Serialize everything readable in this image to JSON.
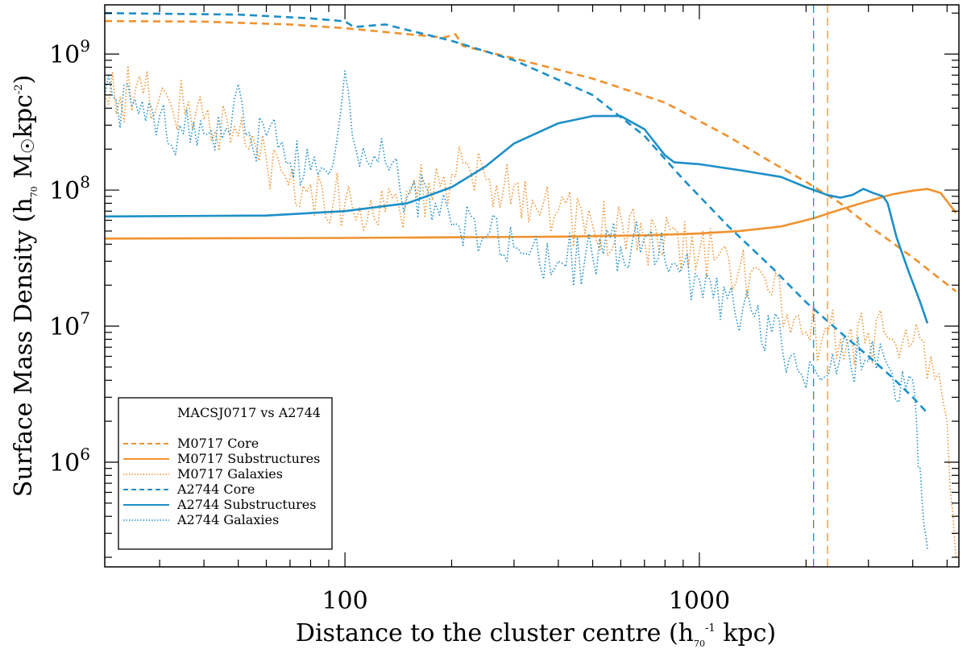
{
  "chart_data": {
    "type": "line",
    "x_scale": "log",
    "y_scale": "log",
    "xlim": [
      21,
      5400
    ],
    "ylim": [
      170000,
      2300000000
    ],
    "xlabel_parts": [
      "Distance to the cluster centre (h",
      "70",
      "-1",
      " kpc)"
    ],
    "ylabel_parts": [
      "Surface Mass Density (h",
      "70",
      " M",
      "☉",
      "kpc",
      "-2",
      ")"
    ],
    "x_ticks": [
      {
        "value": 100,
        "label": "100"
      },
      {
        "value": 1000,
        "label": "1000"
      }
    ],
    "y_ticks": [
      {
        "value": 1000000,
        "base": "10",
        "exp": "6"
      },
      {
        "value": 10000000,
        "base": "10",
        "exp": "7"
      },
      {
        "value": 100000000,
        "base": "10",
        "exp": "8"
      },
      {
        "value": 1000000000,
        "base": "10",
        "exp": "9"
      }
    ],
    "grid": false,
    "legend": {
      "position": "bottom-left",
      "title": "MACSJ0717 vs A2744"
    },
    "colors": {
      "orange": "#f0922e",
      "blue": "#1c8fc8"
    },
    "vlines": [
      {
        "x": 2100,
        "color": "#1c8fc8",
        "style": "dashed"
      },
      {
        "x": 2300,
        "color": "#f0922e",
        "style": "dashed"
      }
    ],
    "series": [
      {
        "name": "M0717 Core",
        "color": "#f0922e",
        "style": "dashed",
        "x": [
          21,
          40,
          70,
          100,
          150,
          190,
          205,
          215,
          300,
          500,
          800,
          1200,
          1600,
          2000,
          2500,
          3000,
          4000,
          5300
        ],
        "y": [
          1750000000,
          1730000000,
          1650000000,
          1550000000,
          1400000000,
          1320000000,
          1400000000,
          1150000000,
          930000000,
          660000000,
          440000000,
          250000000,
          160000000,
          115000000,
          80000000,
          55000000,
          32000000,
          18000000
        ]
      },
      {
        "name": "M0717 Substructures",
        "color": "#f0922e",
        "style": "solid",
        "x": [
          21,
          100,
          200,
          400,
          700,
          1000,
          1300,
          1700,
          2100,
          2500,
          3000,
          3500,
          4000,
          4400,
          4800,
          5300
        ],
        "y": [
          44000000,
          44500000,
          45000000,
          45500000,
          46500000,
          48000000,
          50000000,
          54000000,
          62000000,
          72000000,
          83000000,
          93000000,
          99000000,
          102000000,
          95000000,
          68000000
        ]
      },
      {
        "name": "M0717 Galaxies",
        "color": "#f0922e",
        "style": "dotted",
        "x": [
          21,
          27,
          32,
          40,
          50,
          60,
          80,
          100,
          130,
          160,
          200,
          250,
          300,
          400,
          500,
          700,
          1000,
          1300,
          1600,
          2000,
          2500,
          3000,
          3500,
          4000,
          4500,
          5000,
          5200,
          5300
        ],
        "y": [
          500000000,
          510000000,
          450000000,
          330000000,
          250000000,
          170000000,
          110000000,
          80000000,
          70000000,
          90000000,
          130000000,
          120000000,
          110000000,
          70000000,
          55000000,
          42000000,
          35000000,
          27000000,
          17000000,
          9000000,
          8000000,
          9000000,
          8000000,
          7500000,
          6000000,
          2000000,
          400000,
          200000
        ],
        "noise": 0.22
      },
      {
        "name": "A2744 Core",
        "color": "#1c8fc8",
        "style": "dashed",
        "x": [
          21,
          50,
          80,
          100,
          106,
          130,
          200,
          300,
          500,
          700,
          900,
          1200,
          1600,
          2000,
          2500,
          3000,
          3500,
          4000,
          4400
        ],
        "y": [
          2000000000,
          1950000000,
          1830000000,
          1740000000,
          1580000000,
          1650000000,
          1250000000,
          900000000,
          500000000,
          250000000,
          120000000,
          55000000,
          27000000,
          15000000,
          9000000,
          6000000,
          4200000,
          3000000,
          2300000
        ]
      },
      {
        "name": "A2744 Substructures",
        "color": "#1c8fc8",
        "style": "solid",
        "x": [
          21,
          60,
          100,
          150,
          200,
          250,
          300,
          400,
          500,
          600,
          700,
          800,
          850,
          1000,
          1300,
          1700,
          2000,
          2300,
          2500,
          2700,
          2900,
          3100,
          3300,
          3400,
          3600,
          3900,
          4200,
          4400
        ],
        "y": [
          64000000,
          65000000,
          70000000,
          80000000,
          105000000,
          150000000,
          220000000,
          310000000,
          350000000,
          350000000,
          280000000,
          180000000,
          160000000,
          155000000,
          140000000,
          125000000,
          105000000,
          92000000,
          88000000,
          92000000,
          102000000,
          95000000,
          90000000,
          80000000,
          45000000,
          25000000,
          15000000,
          10500000
        ]
      },
      {
        "name": "A2744 Galaxies",
        "color": "#1c8fc8",
        "style": "dotted",
        "x": [
          21,
          25,
          30,
          35,
          40,
          45,
          50,
          55,
          60,
          70,
          80,
          90,
          100,
          110,
          130,
          150,
          180,
          200,
          250,
          300,
          400,
          500,
          600,
          700,
          800,
          900,
          1000,
          1200,
          1400,
          1600,
          1800,
          2000,
          2200,
          2500,
          3000,
          3500,
          4000,
          4100,
          4200,
          4300,
          4400
        ],
        "y": [
          500000000,
          420000000,
          350000000,
          260000000,
          260000000,
          240000000,
          600000000,
          200000000,
          250000000,
          160000000,
          140000000,
          130000000,
          750000000,
          150000000,
          160000000,
          90000000,
          80000000,
          55000000,
          45000000,
          38000000,
          30000000,
          32000000,
          38000000,
          45000000,
          30000000,
          28000000,
          22000000,
          16000000,
          13000000,
          9000000,
          6000000,
          3500000,
          4000000,
          6000000,
          5500000,
          4500000,
          4000000,
          2000000,
          900000,
          350000,
          230000
        ],
        "noise": 0.2
      }
    ]
  }
}
